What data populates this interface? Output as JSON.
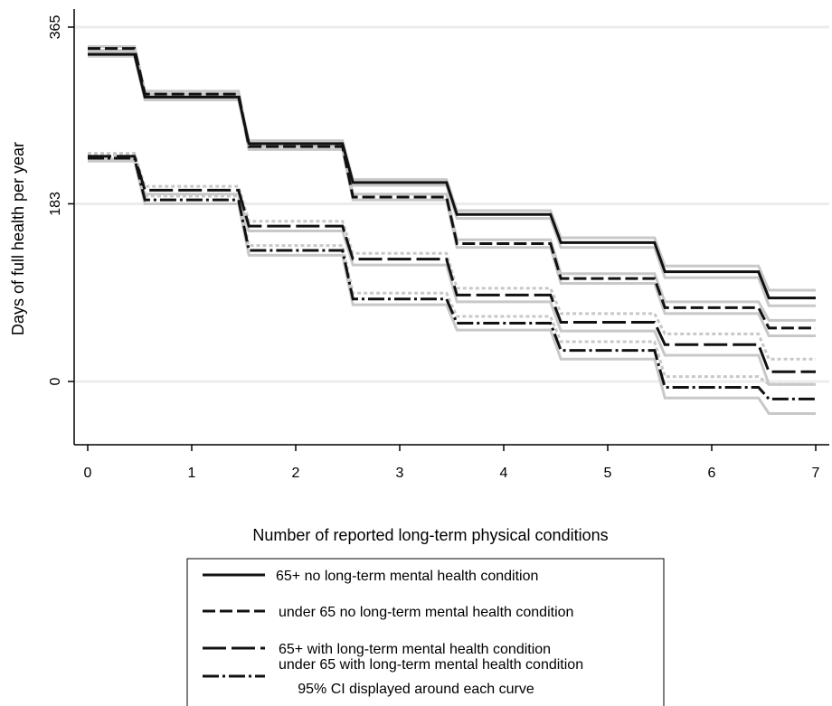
{
  "chart_data": {
    "type": "line",
    "step": true,
    "xlabel": "Number of reported long-term physical conditions",
    "ylabel": "Days of full health per year",
    "x_ticks": [
      0,
      1,
      2,
      3,
      4,
      5,
      6,
      7
    ],
    "y_ticks": [
      0,
      183,
      365
    ],
    "xlim": [
      -0.1,
      7.1
    ],
    "ylim": [
      -60,
      375
    ],
    "grid": "horizontal",
    "x": [
      0,
      1,
      2,
      3,
      4,
      5,
      6,
      7
    ],
    "series": [
      {
        "name": "65+ no long-term mental health condition",
        "dash": "solid",
        "values": [
          337,
          293,
          245,
          205,
          172,
          143,
          113,
          86
        ],
        "ci_lower": [
          335,
          290,
          242,
          202,
          168,
          138,
          107,
          78
        ],
        "ci_upper": [
          339,
          296,
          248,
          208,
          176,
          148,
          119,
          94
        ]
      },
      {
        "name": "under 65 no long-term mental health condition",
        "dash": "dashed",
        "values": [
          343,
          296,
          242,
          190,
          142,
          106,
          76,
          55
        ],
        "ci_lower": [
          341,
          293,
          239,
          187,
          138,
          101,
          70,
          47
        ],
        "ci_upper": [
          345,
          299,
          245,
          193,
          146,
          111,
          82,
          63
        ]
      },
      {
        "name": "65+ with long-term mental health condition",
        "dash": "longdash",
        "values": [
          232,
          197,
          160,
          126,
          89,
          61,
          38,
          10
        ],
        "ci_lower": [
          229,
          193,
          155,
          120,
          82,
          52,
          27,
          -3
        ],
        "ci_upper": [
          235,
          201,
          165,
          132,
          96,
          70,
          49,
          23
        ]
      },
      {
        "name": "under 65 with long-term mental health condition",
        "dash": "dashdot",
        "values": [
          230,
          187,
          135,
          85,
          60,
          32,
          -6,
          -18
        ],
        "ci_lower": [
          227,
          183,
          130,
          79,
          53,
          23,
          -17,
          -33
        ],
        "ci_upper": [
          233,
          191,
          140,
          91,
          67,
          41,
          5,
          -3
        ]
      }
    ],
    "ci_color": "#c8c8c8",
    "legend_placement": "bottom",
    "legend_note": "95% CI displayed around each curve"
  }
}
